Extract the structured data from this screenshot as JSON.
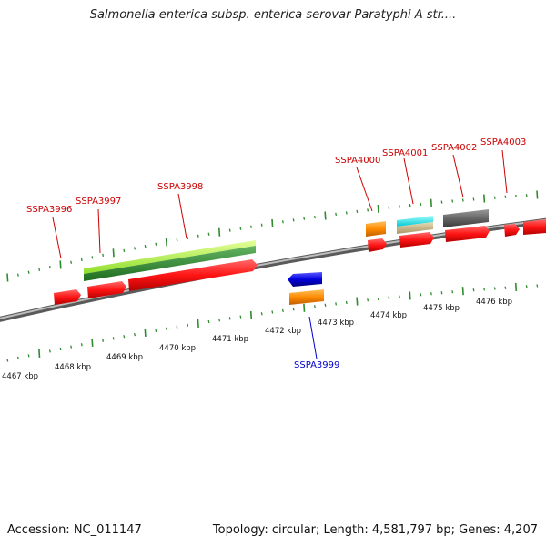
{
  "title": "Salmonella enterica subsp. enterica serovar Paratyphi A str....",
  "footer": {
    "accession": "Accession: NC_011147",
    "summary": "Topology: circular; Length: 4,581,797 bp; Genes: 4,207"
  },
  "colors": {
    "backbone": "#808080",
    "gene_label_forward": "#cc0000",
    "gene_label_reverse": "#0000cc",
    "tick": "#2e8b2e",
    "cds": "#ff1a1a",
    "orange": "#ff8c00",
    "blue": "#0000dd",
    "cyan": "#00e5ee",
    "tan": "#c9b88a",
    "gray": "#666666",
    "lime": "#a6f03a",
    "green": "#2e8b2e"
  },
  "scale_labels": [
    "4467 kbp",
    "4468 kbp",
    "4469 kbp",
    "4470 kbp",
    "4471 kbp",
    "4472 kbp",
    "4473 kbp",
    "4474 kbp",
    "4475 kbp",
    "4476 kbp"
  ],
  "gene_labels": [
    {
      "name": "SSPA3996",
      "strand": "forward"
    },
    {
      "name": "SSPA3997",
      "strand": "forward"
    },
    {
      "name": "SSPA3998",
      "strand": "forward"
    },
    {
      "name": "SSPA3999",
      "strand": "reverse"
    },
    {
      "name": "SSPA4000",
      "strand": "forward"
    },
    {
      "name": "SSPA4001",
      "strand": "forward"
    },
    {
      "name": "SSPA4002",
      "strand": "forward"
    },
    {
      "name": "SSPA4003",
      "strand": "forward"
    }
  ]
}
